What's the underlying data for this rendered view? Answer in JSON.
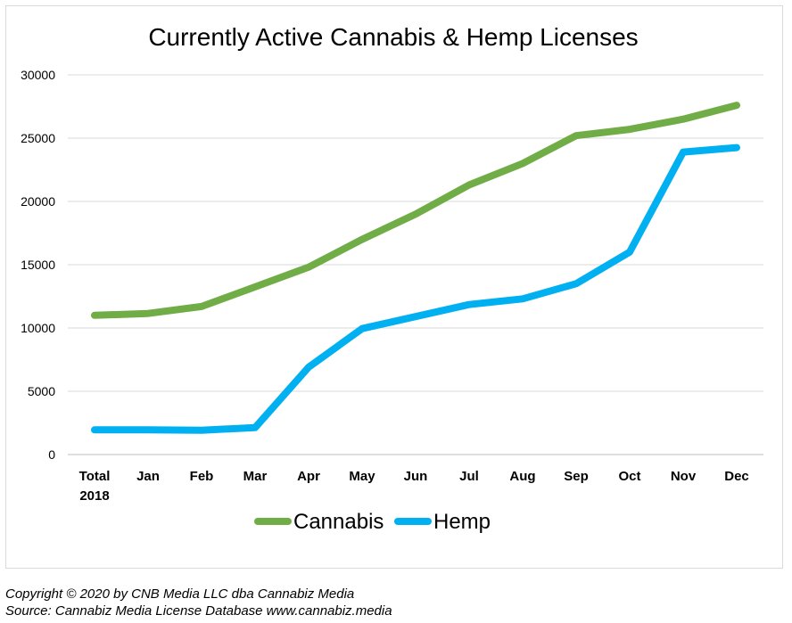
{
  "chart_data": {
    "type": "line",
    "title": "Currently Active Cannabis & Hemp Licenses",
    "categories": [
      "Total 2018",
      "Jan",
      "Feb",
      "Mar",
      "Apr",
      "May",
      "Jun",
      "Jul",
      "Aug",
      "Sep",
      "Oct",
      "Nov",
      "Dec"
    ],
    "category_lines": [
      [
        "Total",
        "2018"
      ],
      [
        "Jan"
      ],
      [
        "Feb"
      ],
      [
        "Mar"
      ],
      [
        "Apr"
      ],
      [
        "May"
      ],
      [
        "Jun"
      ],
      [
        "Jul"
      ],
      [
        "Aug"
      ],
      [
        "Sep"
      ],
      [
        "Oct"
      ],
      [
        "Nov"
      ],
      [
        "Dec"
      ]
    ],
    "yticks": [
      0,
      5000,
      10000,
      15000,
      20000,
      25000,
      30000
    ],
    "ylim": [
      0,
      30000
    ],
    "grid": true,
    "legend_position": "bottom",
    "series": [
      {
        "name": "Cannabis",
        "color": "#70ad47",
        "values": [
          11000,
          11150,
          11700,
          13250,
          14800,
          17000,
          19000,
          21300,
          23000,
          25200,
          25700,
          26500,
          27600
        ]
      },
      {
        "name": "Hemp",
        "color": "#00b0f0",
        "values": [
          1950,
          1950,
          1920,
          2130,
          6900,
          9950,
          10900,
          11850,
          12300,
          13500,
          16000,
          23900,
          24250
        ]
      }
    ]
  },
  "footer": {
    "copyright": "Copyright © 2020 by CNB Media LLC dba Cannabiz Media",
    "source": "Source: Cannabiz Media License Database www.cannabiz.media"
  }
}
